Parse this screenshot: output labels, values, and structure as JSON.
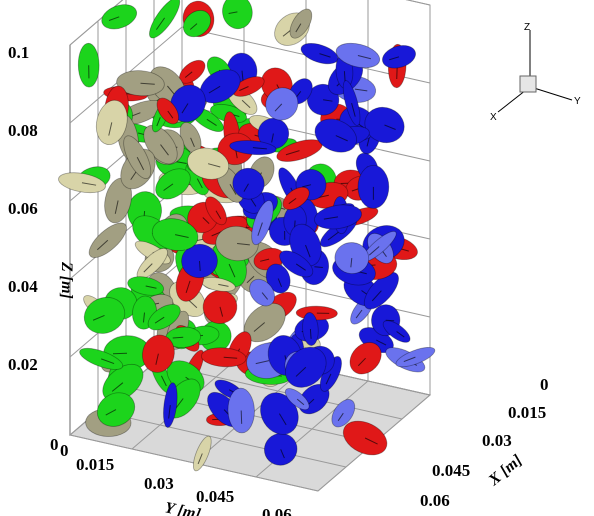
{
  "chart_data": {
    "type": "scatter",
    "subtype": "3d-particle-disks",
    "title": "",
    "axes": {
      "x": {
        "label": "X [m]",
        "ticks": [
          "0",
          "0.015",
          "0.03",
          "0.045",
          "0.06"
        ],
        "range": [
          0,
          0.06
        ]
      },
      "y": {
        "label": "Y [m]",
        "ticks": [
          "0",
          "0.015",
          "0.03",
          "0.045",
          "0.06"
        ],
        "range": [
          0,
          0.06
        ]
      },
      "z": {
        "label": "Z [m]",
        "ticks": [
          "0",
          "0.02",
          "0.04",
          "0.06",
          "0.08",
          "0.1"
        ],
        "range": [
          0,
          0.1
        ]
      }
    },
    "grid": true,
    "orientation_triad": {
      "labels": [
        "Z",
        "X",
        "Y"
      ]
    },
    "colors": {
      "red": "#e01818",
      "green": "#1cd41c",
      "blue": "#1818d8",
      "light_blue": "#6a72ee",
      "cream": "#d8d4a8",
      "gray_olive": "#a29f82",
      "grid": "#9a9a9a",
      "floor": "#d9d9d9"
    },
    "legend": "none",
    "series": [
      {
        "color_name": "green",
        "position": "left region (low Y)"
      },
      {
        "color_name": "red",
        "position": "center"
      },
      {
        "color_name": "blue",
        "position": "right region (high Y)"
      },
      {
        "color_name": "cream",
        "position": "center-left"
      },
      {
        "color_name": "gray_olive",
        "position": "left region (low Y)"
      }
    ]
  }
}
